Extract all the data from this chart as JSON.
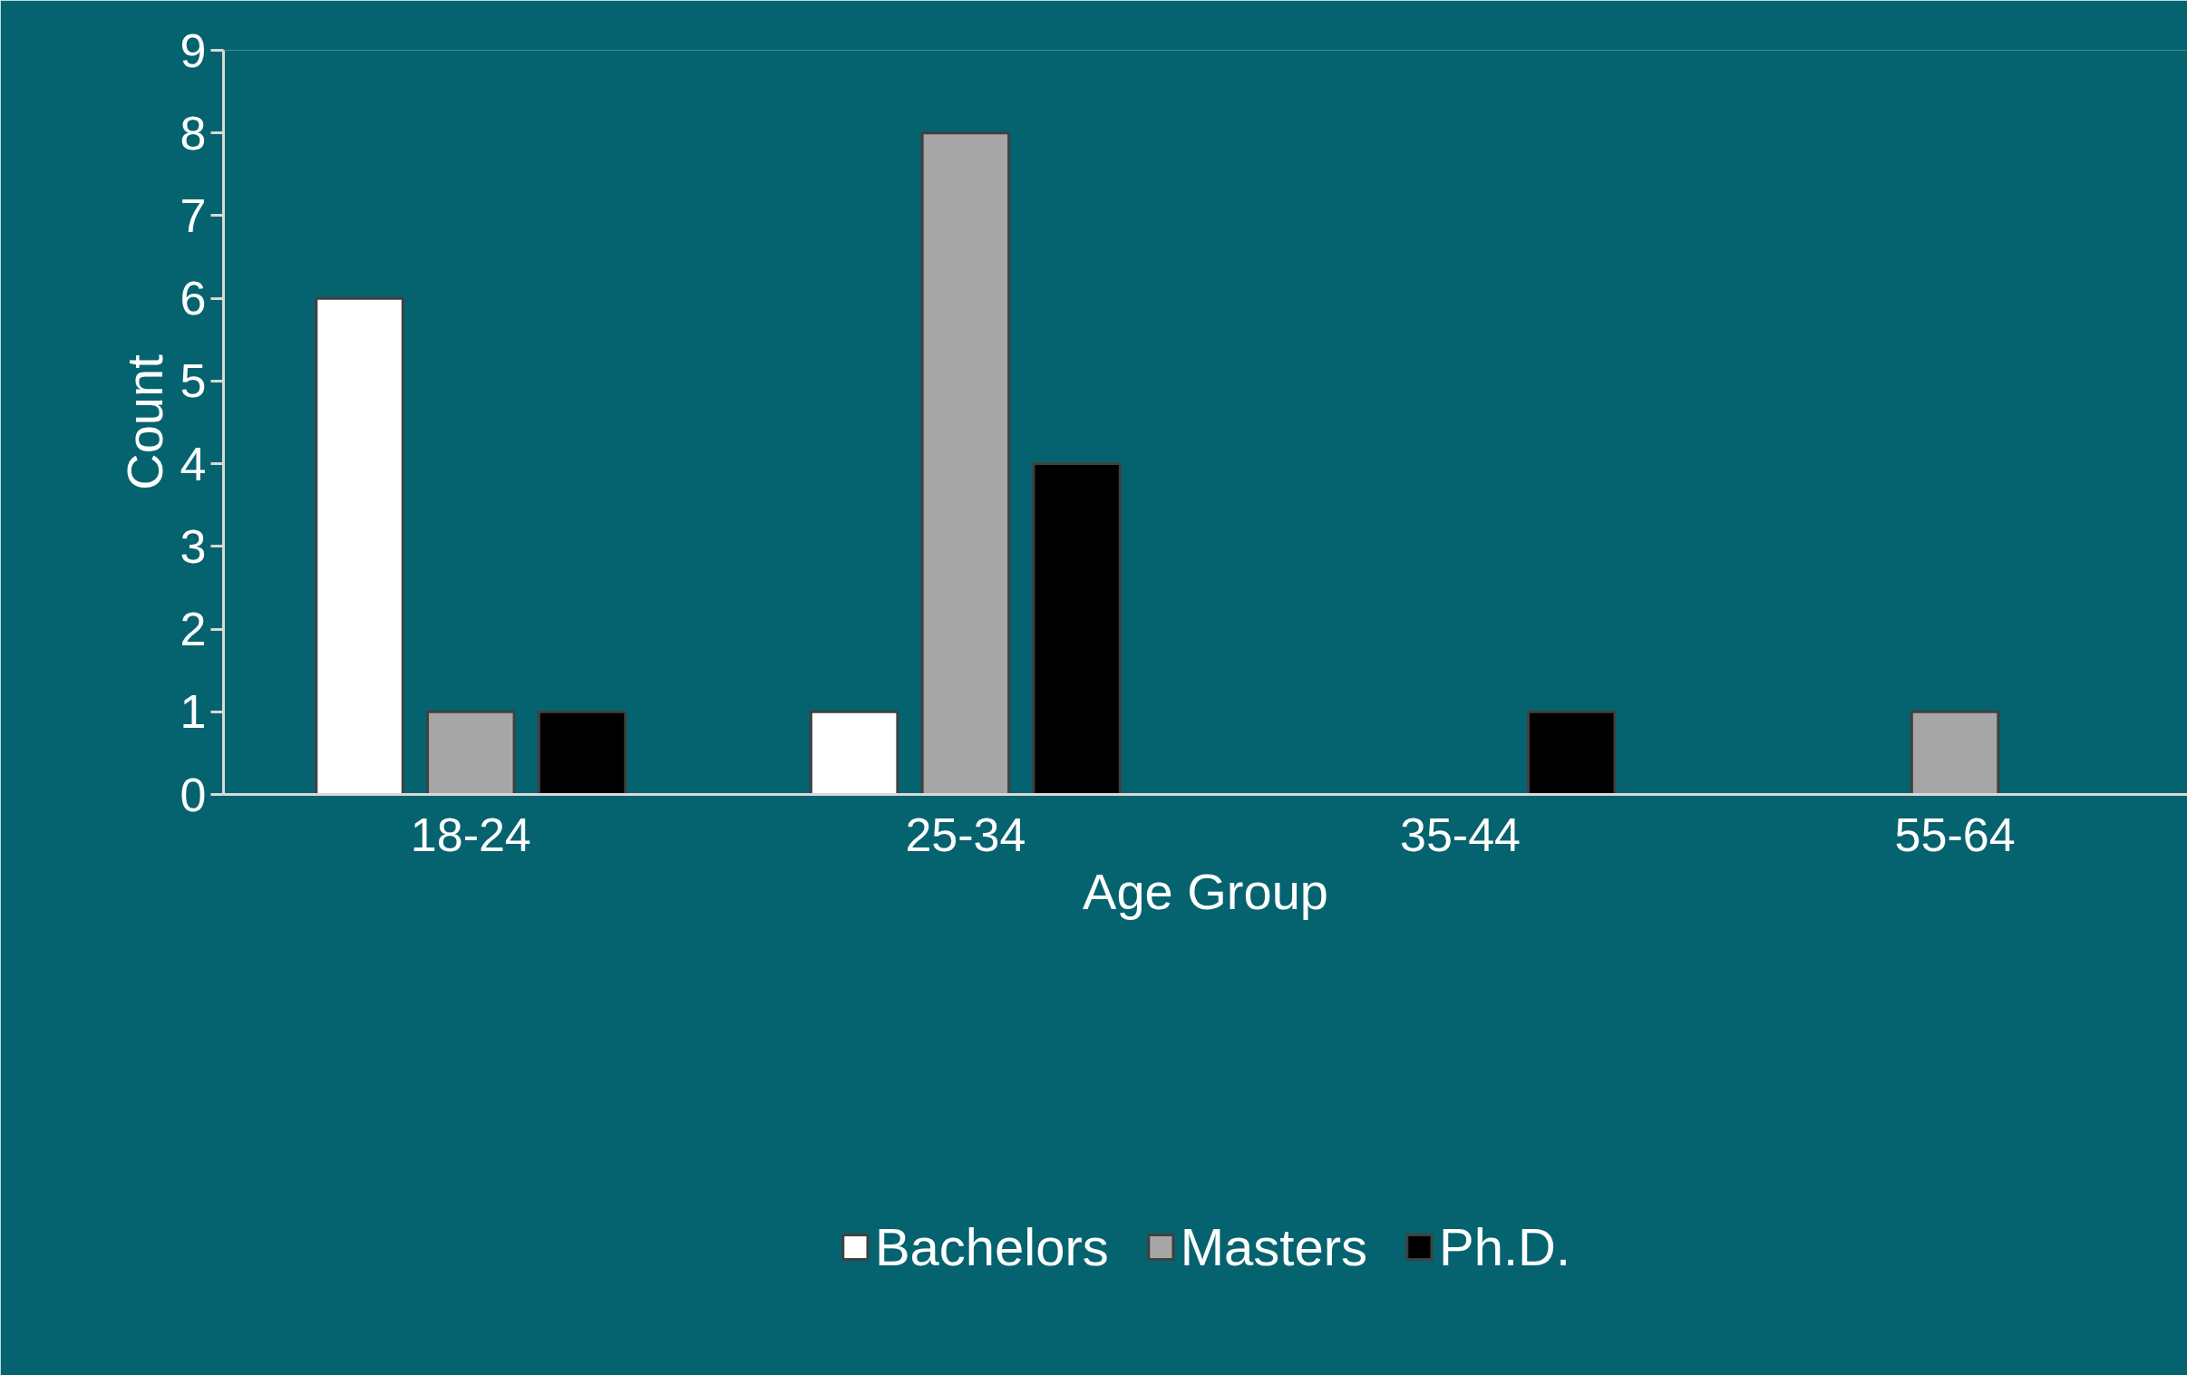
{
  "chart_data": {
    "type": "bar",
    "xlabel": "Age Group",
    "ylabel": "Count",
    "categories": [
      "18-24",
      "25-34",
      "35-44",
      "55-64"
    ],
    "series": [
      {
        "name": "Bachelors",
        "color": "#ffffff",
        "values": [
          6,
          1,
          null,
          null
        ]
      },
      {
        "name": "Masters",
        "color": "#a6a6a6",
        "values": [
          1,
          8,
          null,
          1
        ]
      },
      {
        "name": "Ph.D.",
        "color": "#000000",
        "values": [
          1,
          4,
          1,
          null
        ]
      }
    ],
    "ylim": [
      0,
      9
    ],
    "yticks": [
      0,
      1,
      2,
      3,
      4,
      5,
      6,
      7,
      8,
      9
    ],
    "grid": false,
    "legend": "bottom"
  }
}
